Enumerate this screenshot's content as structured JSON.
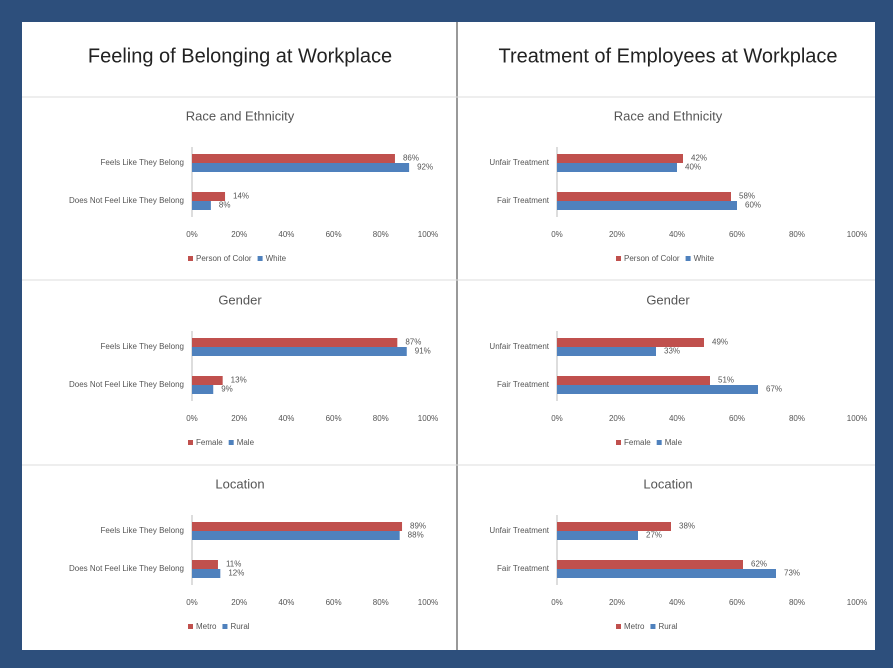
{
  "columns": [
    "Feeling of Belonging at Workplace",
    "Treatment of Employees at Workplace"
  ],
  "chart_data": [
    {
      "type": "barh",
      "title": "Race and Ethnicity",
      "categories": [
        "Feels Like They Belong",
        "Does Not Feel Like They Belong"
      ],
      "series": [
        {
          "name": "Person of Color",
          "color": "#c0504d",
          "values": [
            86,
            14
          ],
          "value_labels": [
            "86%",
            "14%"
          ]
        },
        {
          "name": "White",
          "color": "#4f81bd",
          "values": [
            92,
            8
          ],
          "value_labels": [
            "92%",
            "8%"
          ]
        }
      ],
      "xlim": [
        0,
        100
      ],
      "xticks": [
        {
          "value": 0,
          "label": "0%"
        },
        {
          "value": 20,
          "label": "20%"
        },
        {
          "value": 40,
          "label": "40%"
        },
        {
          "value": 60,
          "label": "60%"
        },
        {
          "value": 80,
          "label": "80%"
        },
        {
          "value": 100,
          "label": "100%"
        }
      ],
      "legend": "bottom"
    },
    {
      "type": "barh",
      "title": "Race and Ethnicity",
      "categories": [
        "Unfair Treatment",
        "Fair Treatment"
      ],
      "series": [
        {
          "name": "Person of Color",
          "color": "#c0504d",
          "values": [
            42,
            58
          ],
          "value_labels": [
            "42%",
            "58%"
          ]
        },
        {
          "name": "White",
          "color": "#4f81bd",
          "values": [
            40,
            60
          ],
          "value_labels": [
            "40%",
            "60%"
          ]
        }
      ],
      "xlim": [
        0,
        100
      ],
      "xticks": [
        {
          "value": 0,
          "label": "0%"
        },
        {
          "value": 20,
          "label": "20%"
        },
        {
          "value": 40,
          "label": "40%"
        },
        {
          "value": 60,
          "label": "60%"
        },
        {
          "value": 80,
          "label": "80%"
        },
        {
          "value": 100,
          "label": "100%"
        }
      ],
      "legend": "bottom"
    },
    {
      "type": "barh",
      "title": "Gender",
      "categories": [
        "Feels Like They Belong",
        "Does Not Feel Like They Belong"
      ],
      "series": [
        {
          "name": "Female",
          "color": "#c0504d",
          "values": [
            87,
            13
          ],
          "value_labels": [
            "87%",
            "13%"
          ]
        },
        {
          "name": "Male",
          "color": "#4f81bd",
          "values": [
            91,
            9
          ],
          "value_labels": [
            "91%",
            "9%"
          ]
        }
      ],
      "xlim": [
        0,
        100
      ],
      "xticks": [
        {
          "value": 0,
          "label": "0%"
        },
        {
          "value": 20,
          "label": "20%"
        },
        {
          "value": 40,
          "label": "40%"
        },
        {
          "value": 60,
          "label": "60%"
        },
        {
          "value": 80,
          "label": "80%"
        },
        {
          "value": 100,
          "label": "100%"
        }
      ],
      "legend": "bottom"
    },
    {
      "type": "barh",
      "title": "Gender",
      "categories": [
        "Unfair Treatment",
        "Fair Treatment"
      ],
      "series": [
        {
          "name": "Female",
          "color": "#c0504d",
          "values": [
            49,
            51
          ],
          "value_labels": [
            "49%",
            "51%"
          ]
        },
        {
          "name": "Male",
          "color": "#4f81bd",
          "values": [
            33,
            67
          ],
          "value_labels": [
            "33%",
            "67%"
          ]
        }
      ],
      "xlim": [
        0,
        100
      ],
      "xticks": [
        {
          "value": 0,
          "label": "0%"
        },
        {
          "value": 20,
          "label": "20%"
        },
        {
          "value": 40,
          "label": "40%"
        },
        {
          "value": 60,
          "label": "60%"
        },
        {
          "value": 80,
          "label": "80%"
        },
        {
          "value": 100,
          "label": "100%"
        }
      ],
      "legend": "bottom"
    },
    {
      "type": "barh",
      "title": "Location",
      "categories": [
        "Feels Like They Belong",
        "Does Not Feel Like They Belong"
      ],
      "series": [
        {
          "name": "Metro",
          "color": "#c0504d",
          "values": [
            89,
            11
          ],
          "value_labels": [
            "89%",
            "11%"
          ]
        },
        {
          "name": "Rural",
          "color": "#4f81bd",
          "values": [
            88,
            12
          ],
          "value_labels": [
            "88%",
            "12%"
          ]
        }
      ],
      "xlim": [
        0,
        100
      ],
      "xticks": [
        {
          "value": 0,
          "label": "0%"
        },
        {
          "value": 20,
          "label": "20%"
        },
        {
          "value": 40,
          "label": "40%"
        },
        {
          "value": 60,
          "label": "60%"
        },
        {
          "value": 80,
          "label": "80%"
        },
        {
          "value": 100,
          "label": "100%"
        }
      ],
      "legend": "bottom"
    },
    {
      "type": "barh",
      "title": "Location",
      "categories": [
        "Unfair Treatment",
        "Fair Treatment"
      ],
      "series": [
        {
          "name": "Metro",
          "color": "#c0504d",
          "values": [
            38,
            62
          ],
          "value_labels": [
            "38%",
            "62%"
          ]
        },
        {
          "name": "Rural",
          "color": "#4f81bd",
          "values": [
            27,
            73
          ],
          "value_labels": [
            "27%",
            "73%"
          ]
        }
      ],
      "xlim": [
        0,
        100
      ],
      "xticks": [
        {
          "value": 0,
          "label": "0%"
        },
        {
          "value": 20,
          "label": "20%"
        },
        {
          "value": 40,
          "label": "40%"
        },
        {
          "value": 60,
          "label": "60%"
        },
        {
          "value": 80,
          "label": "80%"
        },
        {
          "value": 100,
          "label": "100%"
        }
      ],
      "legend": "bottom"
    }
  ]
}
